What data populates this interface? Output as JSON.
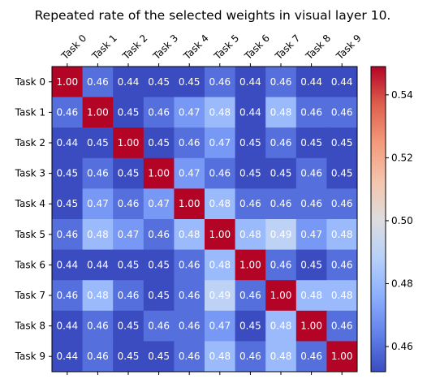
{
  "chart_data": {
    "type": "heatmap",
    "title": "Repeated rate of the selected weights in visual layer 10.",
    "x_labels": [
      "Task 0",
      "Task 1",
      "Task 2",
      "Task 3",
      "Task 4",
      "Task 5",
      "Task 6",
      "Task 7",
      "Task 8",
      "Task 9"
    ],
    "y_labels": [
      "Task 0",
      "Task 1",
      "Task 2",
      "Task 3",
      "Task 4",
      "Task 5",
      "Task 6",
      "Task 7",
      "Task 8",
      "Task 9"
    ],
    "matrix": [
      [
        1.0,
        0.46,
        0.44,
        0.45,
        0.45,
        0.46,
        0.44,
        0.46,
        0.44,
        0.44
      ],
      [
        0.46,
        1.0,
        0.45,
        0.46,
        0.47,
        0.48,
        0.44,
        0.48,
        0.46,
        0.46
      ],
      [
        0.44,
        0.45,
        1.0,
        0.45,
        0.46,
        0.47,
        0.45,
        0.46,
        0.45,
        0.45
      ],
      [
        0.45,
        0.46,
        0.45,
        1.0,
        0.47,
        0.46,
        0.45,
        0.45,
        0.46,
        0.45
      ],
      [
        0.45,
        0.47,
        0.46,
        0.47,
        1.0,
        0.48,
        0.46,
        0.46,
        0.46,
        0.46
      ],
      [
        0.46,
        0.48,
        0.47,
        0.46,
        0.48,
        1.0,
        0.48,
        0.49,
        0.47,
        0.48
      ],
      [
        0.44,
        0.44,
        0.45,
        0.45,
        0.46,
        0.48,
        1.0,
        0.46,
        0.45,
        0.46
      ],
      [
        0.46,
        0.48,
        0.46,
        0.45,
        0.46,
        0.49,
        0.46,
        1.0,
        0.48,
        0.48
      ],
      [
        0.44,
        0.46,
        0.45,
        0.46,
        0.46,
        0.47,
        0.45,
        0.48,
        1.0,
        0.46
      ],
      [
        0.44,
        0.46,
        0.45,
        0.45,
        0.46,
        0.48,
        0.46,
        0.48,
        0.46,
        1.0
      ]
    ],
    "color_range": [
      0.452,
      0.549
    ],
    "colormap": "coolwarm",
    "colorbar_ticks": [
      "0.46",
      "0.48",
      "0.50",
      "0.52",
      "0.54"
    ],
    "colorbar_tick_values": [
      0.46,
      0.48,
      0.5,
      0.52,
      0.54
    ],
    "x_tick_position": "top",
    "grid": false
  }
}
